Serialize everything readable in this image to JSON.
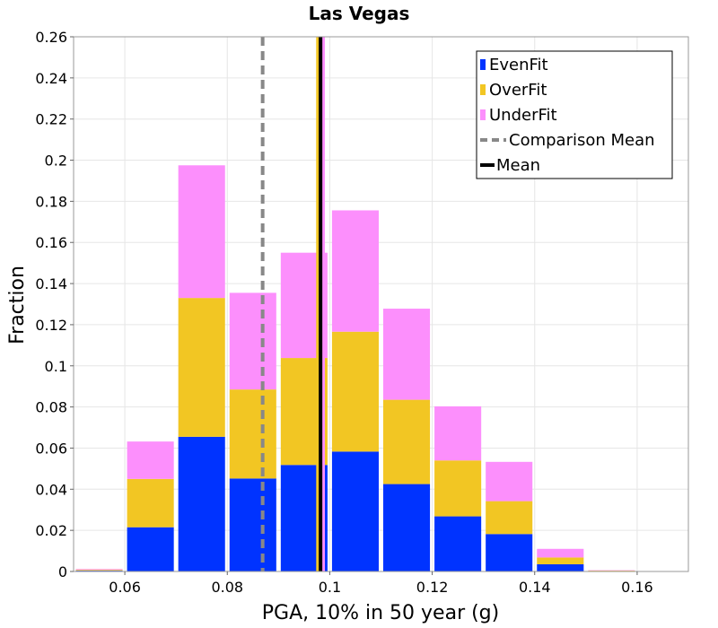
{
  "chart_data": {
    "type": "bar",
    "stacked": true,
    "title": "Las Vegas",
    "xlabel": "PGA, 10% in 50 year (g)",
    "ylabel": "Fraction",
    "xlim": [
      0.05,
      0.17
    ],
    "ylim": [
      0,
      0.26
    ],
    "bin_width": 0.01,
    "x": [
      0.055,
      0.065,
      0.075,
      0.085,
      0.095,
      0.105,
      0.115,
      0.125,
      0.135,
      0.145,
      0.155
    ],
    "xticks": [
      "0.06",
      "0.08",
      "0.1",
      "0.12",
      "0.14",
      "0.16"
    ],
    "yticks": [
      "0",
      "0.02",
      "0.04",
      "0.06",
      "0.08",
      "0.1",
      "0.12",
      "0.14",
      "0.16",
      "0.18",
      "0.2",
      "0.22",
      "0.24",
      "0.26"
    ],
    "grid": true,
    "legend_position": "top-right",
    "series": [
      {
        "name": "EvenFit",
        "color": "#0033ff",
        "values": [
          0.0004,
          0.0215,
          0.0655,
          0.0452,
          0.0518,
          0.0583,
          0.0425,
          0.0268,
          0.0182,
          0.0035,
          0.0002
        ]
      },
      {
        "name": "OverFit",
        "color": "#f2c623",
        "values": [
          0.0004,
          0.0235,
          0.0675,
          0.0433,
          0.052,
          0.0583,
          0.041,
          0.0272,
          0.016,
          0.0033,
          0.0002
        ]
      },
      {
        "name": "UnderFit",
        "color": "#fc8ffc",
        "values": [
          0.0004,
          0.0182,
          0.0645,
          0.047,
          0.0512,
          0.059,
          0.0443,
          0.0263,
          0.0191,
          0.0042,
          0.0002
        ]
      }
    ],
    "vlines": [
      {
        "name": "Comparison Mean",
        "x": 0.0869,
        "color": "#888888",
        "style": "dashed"
      },
      {
        "name": "Mean",
        "x": 0.0982,
        "color": "#000000",
        "style": "solid"
      }
    ],
    "extra_markers": [
      {
        "x": 0.0977,
        "color": "#f2c623"
      },
      {
        "x": 0.0987,
        "color": "#fc8ffc"
      }
    ]
  }
}
